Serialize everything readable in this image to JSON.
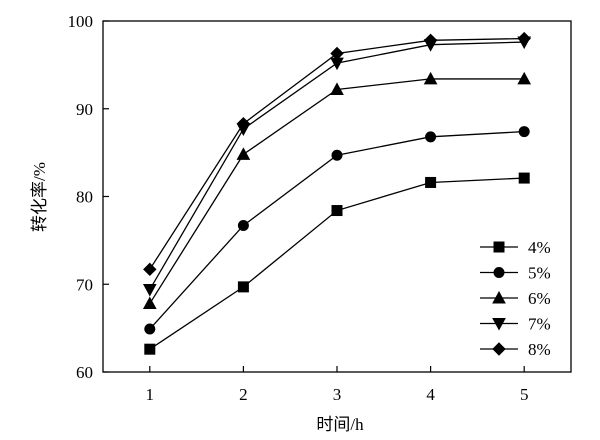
{
  "chart_data": {
    "type": "line",
    "xlabel": "时间/h",
    "ylabel": "转化率/%",
    "x": [
      1,
      2,
      3,
      4,
      5
    ],
    "xticks": [
      "1",
      "2",
      "3",
      "4",
      "5"
    ],
    "yticks": [
      "60",
      "70",
      "80",
      "90",
      "100"
    ],
    "xlim": [
      0.5,
      5.5
    ],
    "ylim": [
      60,
      100
    ],
    "grid": false,
    "legend_position": "bottom-right",
    "series": [
      {
        "name": "4%",
        "marker": "square",
        "values": [
          62.6,
          69.7,
          78.4,
          81.6,
          82.1
        ]
      },
      {
        "name": "5%",
        "marker": "circle",
        "values": [
          64.9,
          76.7,
          84.7,
          86.8,
          87.4
        ]
      },
      {
        "name": "6%",
        "marker": "triangle-up",
        "values": [
          67.8,
          84.8,
          92.2,
          93.4,
          93.4
        ]
      },
      {
        "name": "7%",
        "marker": "triangle-down",
        "values": [
          69.4,
          87.7,
          95.2,
          97.3,
          97.6
        ]
      },
      {
        "name": "8%",
        "marker": "diamond",
        "values": [
          71.7,
          88.3,
          96.3,
          97.8,
          98.0
        ]
      }
    ],
    "line_color": "#000000"
  }
}
